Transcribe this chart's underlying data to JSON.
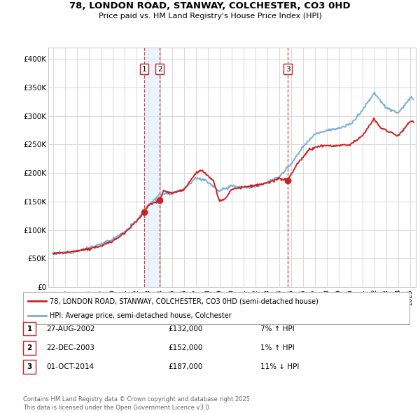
{
  "title": "78, LONDON ROAD, STANWAY, COLCHESTER, CO3 0HD",
  "subtitle": "Price paid vs. HM Land Registry's House Price Index (HPI)",
  "ylim": [
    0,
    420000
  ],
  "yticks": [
    0,
    50000,
    100000,
    150000,
    200000,
    250000,
    300000,
    350000,
    400000
  ],
  "ytick_labels": [
    "£0",
    "£50K",
    "£100K",
    "£150K",
    "£200K",
    "£250K",
    "£300K",
    "£350K",
    "£400K"
  ],
  "legend_line1": "78, LONDON ROAD, STANWAY, COLCHESTER, CO3 0HD (semi-detached house)",
  "legend_line2": "HPI: Average price, semi-detached house, Colchester",
  "sale_points": [
    {
      "label": "1",
      "date": "27-AUG-2002",
      "price": 132000,
      "x": 2002.65,
      "hpi_pct": "7%",
      "direction": "↑"
    },
    {
      "label": "2",
      "date": "22-DEC-2003",
      "price": 152000,
      "x": 2003.97,
      "hpi_pct": "1%",
      "direction": "↑"
    },
    {
      "label": "3",
      "date": "01-OCT-2014",
      "price": 187000,
      "x": 2014.75,
      "hpi_pct": "11%",
      "direction": "↓"
    }
  ],
  "footer": "Contains HM Land Registry data © Crown copyright and database right 2025.\nThis data is licensed under the Open Government Licence v3.0.",
  "red_line_color": "#cc2222",
  "blue_line_color": "#7aaed6",
  "vline_color": "#cc2222",
  "shade_color": "#ddeeff",
  "background_color": "#ffffff",
  "plot_bg_color": "#ffffff",
  "grid_color": "#d8d8d8",
  "hpi_anchors": {
    "1995": 59000,
    "1996": 60000,
    "1997": 63000,
    "1998": 68000,
    "1999": 75000,
    "2000": 84000,
    "2001": 97000,
    "2002": 115000,
    "2003": 142000,
    "2004": 163000,
    "2005": 165000,
    "2006": 172000,
    "2007": 192000,
    "2008": 185000,
    "2009": 168000,
    "2010": 178000,
    "2011": 175000,
    "2012": 176000,
    "2013": 183000,
    "2014": 193000,
    "2015": 215000,
    "2016": 245000,
    "2017": 268000,
    "2018": 275000,
    "2019": 278000,
    "2020": 285000,
    "2021": 310000,
    "2022": 340000,
    "2023": 315000,
    "2024": 305000,
    "2025": 330000
  },
  "red_anchors": {
    "1995.0": 59000,
    "1996.0": 60000,
    "1997.0": 63000,
    "1998.0": 67000,
    "1999.0": 72000,
    "2000.0": 80000,
    "2001.0": 95000,
    "2002.0": 115000,
    "2002.65": 132000,
    "2003.0": 143000,
    "2003.97": 152000,
    "2004.3": 168000,
    "2005.0": 165000,
    "2006.0": 170000,
    "2007.0": 200000,
    "2007.5": 205000,
    "2008.5": 185000,
    "2009.0": 150000,
    "2009.5": 155000,
    "2010.0": 172000,
    "2011.0": 175000,
    "2012.0": 178000,
    "2013.0": 182000,
    "2014.0": 190000,
    "2014.75": 187000,
    "2015.5": 215000,
    "2016.5": 240000,
    "2017.5": 248000,
    "2018.5": 247000,
    "2019.0": 248000,
    "2020.0": 250000,
    "2021.0": 265000,
    "2022.0": 295000,
    "2022.5": 280000,
    "2023.0": 275000,
    "2024.0": 265000,
    "2025.0": 290000
  }
}
